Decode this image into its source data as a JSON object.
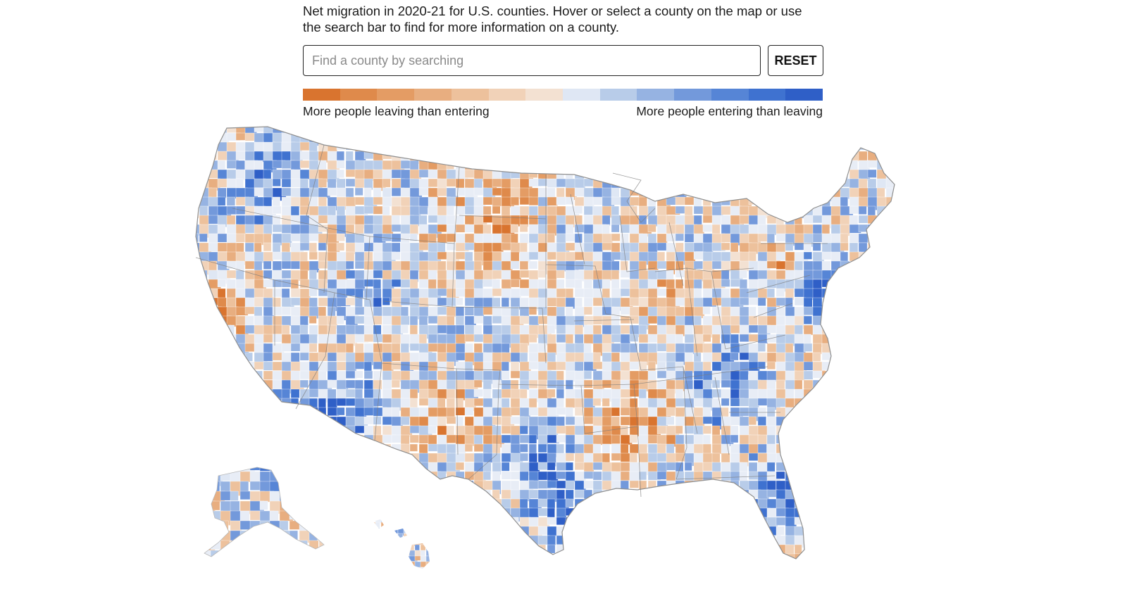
{
  "intro": {
    "text": "Net migration in 2020-21 for U.S. counties. Hover or select a county on the map or use the search bar to find for more information on a county."
  },
  "search": {
    "placeholder": "Find a county by searching",
    "value": ""
  },
  "reset": {
    "label": "RESET"
  },
  "legend": {
    "colors": [
      "#d9742f",
      "#df8a4b",
      "#e49c64",
      "#e8ae80",
      "#edc19c",
      "#f1d2b8",
      "#f3e1d2",
      "#dfe7f4",
      "#b8cce9",
      "#96b3e2",
      "#7399db",
      "#5685d6",
      "#3f72d0",
      "#2f5fc7"
    ],
    "left_label": "More people leaving than entering",
    "right_label": "More people entering than leaving"
  },
  "map": {
    "palette": {
      "background": "#e8edf6",
      "outline": "#8f8f8f",
      "state_border": "#7c7c7c"
    }
  }
}
